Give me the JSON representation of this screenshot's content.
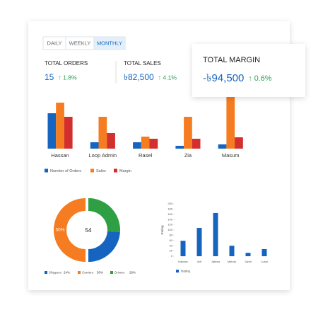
{
  "tabs": [
    "DAILY",
    "WEEKLY",
    "MONTHLY"
  ],
  "active_tab": 2,
  "kpis": [
    {
      "label": "TOTAL ORDERS",
      "value": "15",
      "change": "↑ 1.8%"
    },
    {
      "label": "TOTAL SALES",
      "value": "৳82,500",
      "change": "↑ 4.1%"
    },
    {
      "label": "TOTAL MARGIN",
      "value": "-৳94,500",
      "change": "↑ 0.6%"
    }
  ],
  "bar_chart": {
    "type": "bar",
    "categories": [
      "Hassan",
      "Loop Admin",
      "Rasel",
      "Zia",
      "Masum"
    ],
    "series": [
      {
        "name": "Number of Orders",
        "color": "#1565c0",
        "values": [
          50,
          9,
          9,
          4,
          6
        ]
      },
      {
        "name": "Sales",
        "color": "#f57c20",
        "values": [
          65,
          45,
          17,
          45,
          80
        ]
      },
      {
        "name": "Margin",
        "color": "#d32f2f",
        "values": [
          45,
          22,
          14,
          14,
          16
        ]
      }
    ]
  },
  "donut_chart": {
    "type": "donut",
    "center_label": "54",
    "categories": [
      "Shippers",
      "Carriers",
      "Drivers"
    ],
    "values": [
      24,
      50,
      26
    ],
    "value_labels": [
      "24%",
      "50%",
      "26%"
    ],
    "colors": [
      "#1565c0",
      "#f57c20",
      "#2ea043"
    ]
  },
  "rating_chart": {
    "type": "bar",
    "y_label": "Rating",
    "categories": [
      "Hassan",
      "Arif",
      "Jabbar",
      "Mehdu",
      "Jamil",
      "Lusai"
    ],
    "series": [
      {
        "name": "Rating",
        "color": "#1565c0",
        "values": [
          59,
          108,
          165,
          40,
          13,
          27
        ]
      }
    ],
    "ylim": [
      0,
      200
    ],
    "yticks": [
      0,
      20,
      40,
      60,
      80,
      100,
      120,
      140,
      160,
      180,
      200
    ]
  }
}
